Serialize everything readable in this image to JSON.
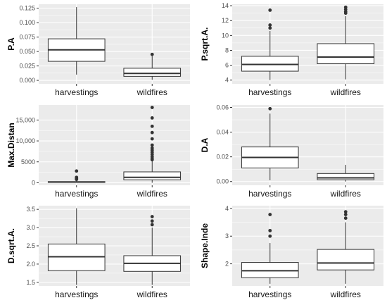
{
  "colors": {
    "panel_background": "#ebebeb",
    "gridline": "#ffffff",
    "box_fill": "#ffffff",
    "box_stroke": "#333333",
    "outlier": "#333333"
  },
  "chart_data": [
    {
      "type": "boxplot",
      "ylabel": "P.A",
      "categories": [
        "harvestings",
        "wildfires"
      ],
      "ylim": [
        -0.006,
        0.132
      ],
      "yticks": [
        0.0,
        0.025,
        0.05,
        0.075,
        0.1,
        0.125
      ],
      "ytick_labels": [
        "0.000",
        "0.025",
        "0.050",
        "0.075",
        "0.100",
        "0.125"
      ],
      "boxes": [
        {
          "name": "harvestings",
          "whisker_low": 0.01,
          "q1": 0.033,
          "median": 0.053,
          "q3": 0.072,
          "whisker_high": 0.127,
          "outliers": []
        },
        {
          "name": "wildfires",
          "whisker_low": 0.001,
          "q1": 0.007,
          "median": 0.012,
          "q3": 0.021,
          "whisker_high": 0.042,
          "outliers": [
            0.045
          ]
        }
      ]
    },
    {
      "type": "boxplot",
      "ylabel": "P.sqrt.A.",
      "categories": [
        "harvestings",
        "wildfires"
      ],
      "ylim": [
        3.5,
        14.2
      ],
      "yticks": [
        4,
        6,
        8,
        10,
        12,
        14
      ],
      "ytick_labels": [
        "4",
        "6",
        "8",
        "10",
        "12",
        "14"
      ],
      "boxes": [
        {
          "name": "harvestings",
          "whisker_low": 4.0,
          "q1": 5.2,
          "median": 6.1,
          "q3": 7.2,
          "whisker_high": 10.6,
          "outliers": [
            11.0,
            11.4,
            13.4
          ]
        },
        {
          "name": "wildfires",
          "whisker_low": 4.1,
          "q1": 6.2,
          "median": 7.1,
          "q3": 8.9,
          "whisker_high": 12.6,
          "outliers": [
            13.0,
            13.2,
            13.5,
            13.8
          ]
        }
      ]
    },
    {
      "type": "boxplot",
      "ylabel": "Max.Distan",
      "categories": [
        "harvestings",
        "wildfires"
      ],
      "ylim": [
        -600,
        18600
      ],
      "yticks": [
        0,
        5000,
        10000,
        15000
      ],
      "ytick_labels": [
        "0",
        "5000",
        "10,000",
        "15,000"
      ],
      "boxes": [
        {
          "name": "harvestings",
          "whisker_low": 0,
          "q1": 80,
          "median": 150,
          "q3": 280,
          "whisker_high": 650,
          "outliers": [
            800,
            1000,
            1300,
            2800
          ]
        },
        {
          "name": "wildfires",
          "whisker_low": 0,
          "q1": 700,
          "median": 1300,
          "q3": 2600,
          "whisker_high": 5200,
          "outliers": [
            5500,
            5900,
            6300,
            6800,
            7300,
            7800,
            8300,
            9000,
            10500,
            12000,
            13500,
            15500,
            18000
          ]
        }
      ]
    },
    {
      "type": "boxplot",
      "ylabel": "D.A",
      "categories": [
        "harvestings",
        "wildfires"
      ],
      "ylim": [
        -0.003,
        0.062
      ],
      "yticks": [
        0.0,
        0.02,
        0.04,
        0.06
      ],
      "ytick_labels": [
        "0.00",
        "0.02",
        "0.04",
        "0.06"
      ],
      "boxes": [
        {
          "name": "harvestings",
          "whisker_low": 0.001,
          "q1": 0.011,
          "median": 0.0195,
          "q3": 0.028,
          "whisker_high": 0.055,
          "outliers": [
            0.059
          ]
        },
        {
          "name": "wildfires",
          "whisker_low": 0.0,
          "q1": 0.0015,
          "median": 0.003,
          "q3": 0.0065,
          "whisker_high": 0.0135,
          "outliers": []
        }
      ]
    },
    {
      "type": "boxplot",
      "ylabel": "D.sqrt.A.",
      "categories": [
        "harvestings",
        "wildfires"
      ],
      "ylim": [
        1.4,
        3.6
      ],
      "yticks": [
        1.5,
        2.0,
        2.5,
        3.0,
        3.5
      ],
      "ytick_labels": [
        "1.5",
        "2.0",
        "2.5",
        "3.0",
        "3.5"
      ],
      "boxes": [
        {
          "name": "harvestings",
          "whisker_low": 1.43,
          "q1": 1.82,
          "median": 2.2,
          "q3": 2.55,
          "whisker_high": 3.53,
          "outliers": []
        },
        {
          "name": "wildfires",
          "whisker_low": 1.43,
          "q1": 1.8,
          "median": 2.02,
          "q3": 2.23,
          "whisker_high": 3.0,
          "outliers": [
            3.08,
            3.18,
            3.3
          ]
        }
      ]
    },
    {
      "type": "boxplot",
      "ylabel": "Shape.Inde",
      "categories": [
        "harvestings",
        "wildfires"
      ],
      "ylim": [
        1.2,
        4.1
      ],
      "yticks": [
        2,
        3,
        4
      ],
      "ytick_labels": [
        "2",
        "3",
        "4"
      ],
      "boxes": [
        {
          "name": "harvestings",
          "whisker_low": 1.28,
          "q1": 1.5,
          "median": 1.75,
          "q3": 2.05,
          "whisker_high": 2.75,
          "outliers": [
            3.0,
            3.2,
            3.78
          ]
        },
        {
          "name": "wildfires",
          "whisker_low": 1.28,
          "q1": 1.78,
          "median": 2.03,
          "q3": 2.52,
          "whisker_high": 3.5,
          "outliers": [
            3.65,
            3.78,
            3.88
          ]
        }
      ]
    }
  ]
}
